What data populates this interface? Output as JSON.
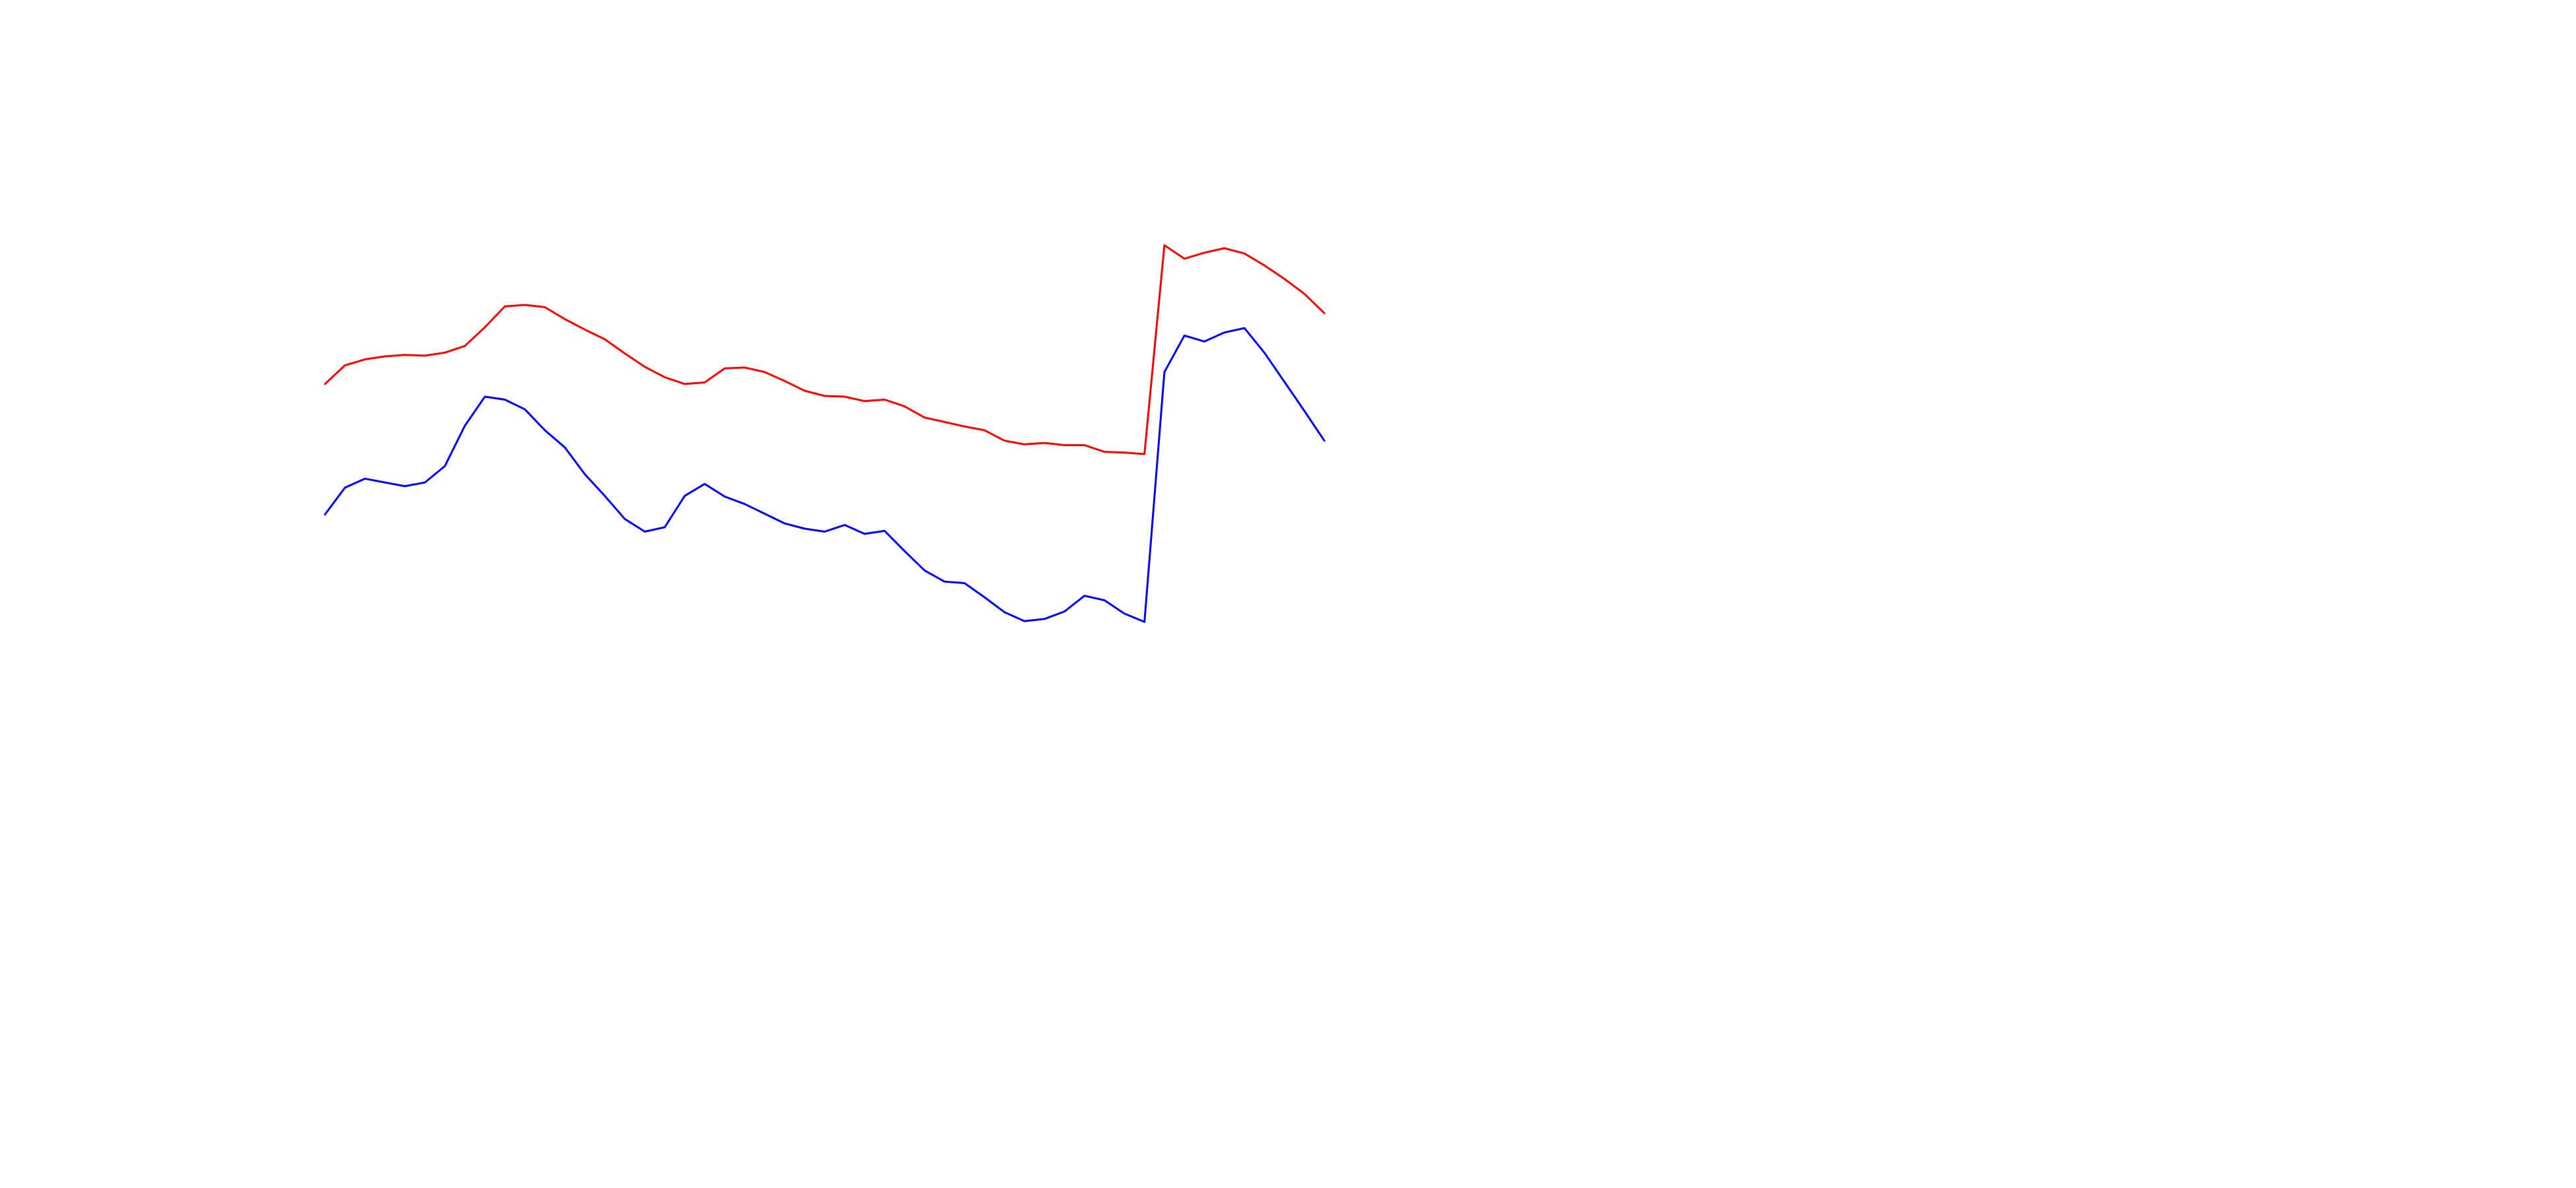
{
  "chart_data": {
    "type": "line",
    "title": "",
    "xlabel": "",
    "ylabel": "",
    "axes_visible": false,
    "grid": false,
    "legend": "none",
    "xlim": [
      0,
      100
    ],
    "ylim": [
      0,
      100
    ],
    "series": [
      {
        "color": "#ff0000",
        "points": [
          [
            0,
            64.0
          ],
          [
            1,
            66.5
          ],
          [
            2,
            67.3
          ],
          [
            3,
            67.7
          ],
          [
            4,
            67.9
          ],
          [
            5,
            67.8
          ],
          [
            6,
            68.2
          ],
          [
            7,
            69.1
          ],
          [
            8,
            71.6
          ],
          [
            9,
            74.4
          ],
          [
            10,
            74.6
          ],
          [
            11,
            74.3
          ],
          [
            12,
            72.7
          ],
          [
            13,
            71.3
          ],
          [
            14,
            70.0
          ],
          [
            15,
            68.1
          ],
          [
            16,
            66.3
          ],
          [
            17,
            64.9
          ],
          [
            18,
            64.0
          ],
          [
            19,
            64.2
          ],
          [
            20,
            66.1
          ],
          [
            21,
            66.2
          ],
          [
            22,
            65.6
          ],
          [
            23,
            64.4
          ],
          [
            24,
            63.1
          ],
          [
            25,
            62.4
          ],
          [
            26,
            62.3
          ],
          [
            27,
            61.7
          ],
          [
            28,
            61.9
          ],
          [
            29,
            61.0
          ],
          [
            30,
            59.5
          ],
          [
            31,
            58.9
          ],
          [
            32,
            58.3
          ],
          [
            33,
            57.8
          ],
          [
            34,
            56.4
          ],
          [
            35,
            55.9
          ],
          [
            36,
            56.1
          ],
          [
            37,
            55.8
          ],
          [
            38,
            55.8
          ],
          [
            39,
            54.9
          ],
          [
            40,
            54.8
          ],
          [
            41,
            54.6
          ],
          [
            42,
            82.6
          ],
          [
            43,
            80.8
          ],
          [
            44,
            81.6
          ],
          [
            45,
            82.2
          ],
          [
            46,
            81.5
          ],
          [
            47,
            79.9
          ],
          [
            48,
            78.1
          ],
          [
            49,
            76.1
          ],
          [
            50,
            73.5
          ]
        ]
      },
      {
        "color": "#0000ff",
        "points": [
          [
            0,
            46.5
          ],
          [
            1,
            50.1
          ],
          [
            2,
            51.3
          ],
          [
            3,
            50.8
          ],
          [
            4,
            50.3
          ],
          [
            5,
            50.8
          ],
          [
            6,
            53.0
          ],
          [
            7,
            58.4
          ],
          [
            8,
            62.3
          ],
          [
            9,
            61.9
          ],
          [
            10,
            60.6
          ],
          [
            11,
            57.8
          ],
          [
            12,
            55.5
          ],
          [
            13,
            51.9
          ],
          [
            14,
            49.0
          ],
          [
            15,
            45.9
          ],
          [
            16,
            44.2
          ],
          [
            17,
            44.8
          ],
          [
            18,
            49.0
          ],
          [
            19,
            50.6
          ],
          [
            20,
            48.9
          ],
          [
            21,
            47.9
          ],
          [
            22,
            46.6
          ],
          [
            23,
            45.3
          ],
          [
            24,
            44.6
          ],
          [
            25,
            44.2
          ],
          [
            26,
            45.1
          ],
          [
            27,
            43.9
          ],
          [
            28,
            44.3
          ],
          [
            29,
            41.6
          ],
          [
            30,
            39.0
          ],
          [
            31,
            37.5
          ],
          [
            32,
            37.3
          ],
          [
            33,
            35.4
          ],
          [
            34,
            33.4
          ],
          [
            35,
            32.2
          ],
          [
            36,
            32.5
          ],
          [
            37,
            33.5
          ],
          [
            38,
            35.6
          ],
          [
            39,
            35.0
          ],
          [
            40,
            33.2
          ],
          [
            41,
            32.1
          ],
          [
            42,
            65.6
          ],
          [
            43,
            70.5
          ],
          [
            44,
            69.7
          ],
          [
            45,
            70.9
          ],
          [
            46,
            71.5
          ],
          [
            47,
            68.2
          ],
          [
            48,
            64.3
          ],
          [
            49,
            60.4
          ],
          [
            50,
            56.4
          ]
        ]
      }
    ]
  }
}
